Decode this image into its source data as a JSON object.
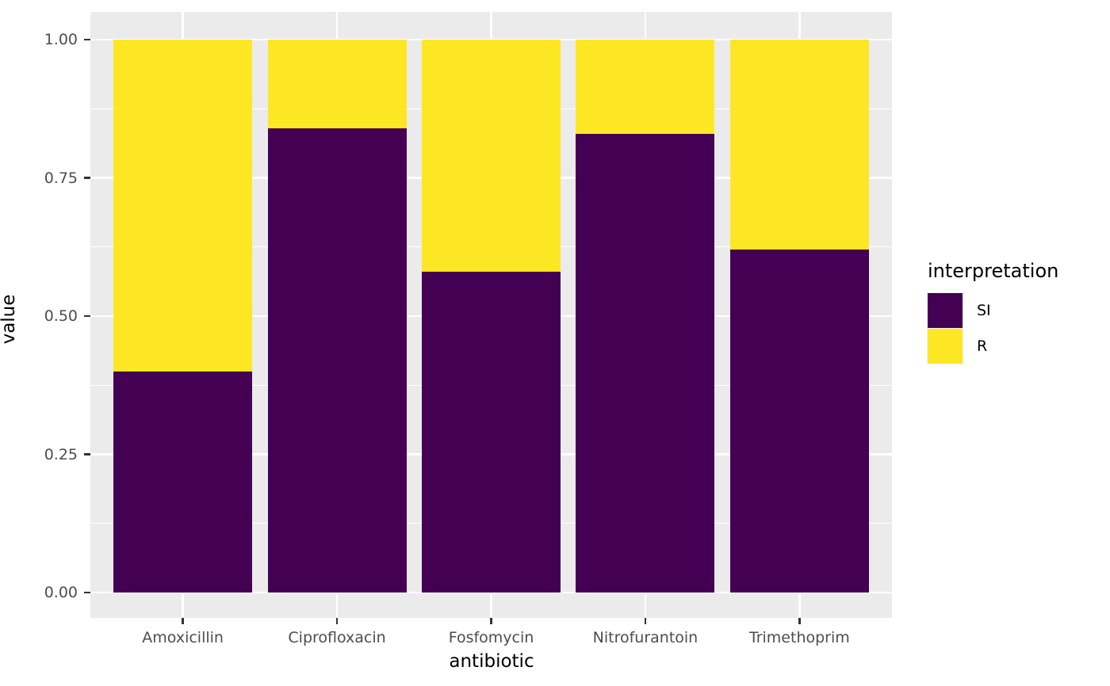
{
  "chart_data": {
    "type": "bar",
    "stacked": true,
    "orientation": "vertical",
    "title": "",
    "xlabel": "antibiotic",
    "ylabel": "value",
    "categories": [
      "Amoxicillin",
      "Ciprofloxacin",
      "Fosfomycin",
      "Nitrofurantoin",
      "Trimethoprim"
    ],
    "series": [
      {
        "name": "SI",
        "color": "#440154",
        "values": [
          0.4,
          0.84,
          0.58,
          0.83,
          0.62
        ]
      },
      {
        "name": "R",
        "color": "#FDE725",
        "values": [
          0.6,
          0.16,
          0.42,
          0.17,
          0.38
        ]
      }
    ],
    "ylim": [
      0,
      1
    ],
    "y_major_ticks": [
      0.0,
      0.25,
      0.5,
      0.75,
      1.0
    ],
    "y_tick_labels": [
      "0.00",
      "0.25",
      "0.50",
      "0.75",
      "1.00"
    ],
    "y_minor_ticks": [
      0.125,
      0.375,
      0.625,
      0.875
    ],
    "grid": "major+minor, white on gray panel",
    "legend": {
      "title": "interpretation",
      "position": "right",
      "entries": [
        {
          "label": "SI",
          "color": "#440154"
        },
        {
          "label": "R",
          "color": "#FDE725"
        }
      ]
    },
    "colors": {
      "panel_background": "#EBEBEB",
      "gridline": "#FFFFFF",
      "tick_mark": "#333333",
      "tick_label": "#4D4D4D",
      "axis_title": "#000000"
    }
  }
}
